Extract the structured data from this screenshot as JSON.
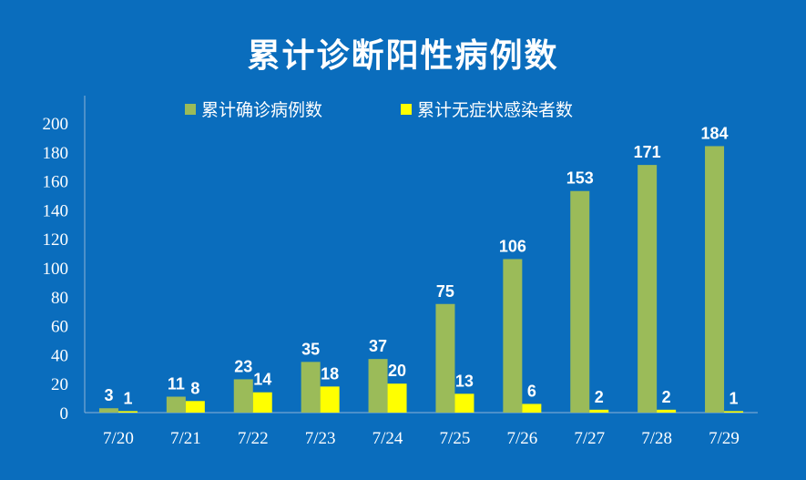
{
  "chart_data": {
    "type": "bar",
    "title": "累计诊断阳性病例数",
    "categories": [
      "7/20",
      "7/21",
      "7/22",
      "7/23",
      "7/24",
      "7/25",
      "7/26",
      "7/27",
      "7/28",
      "7/29"
    ],
    "series": [
      {
        "name": "累计确诊病例数",
        "color": "#9bbb59",
        "values": [
          3,
          11,
          23,
          35,
          37,
          75,
          106,
          153,
          171,
          184
        ]
      },
      {
        "name": "累计无症状感染者数",
        "color": "#ffff00",
        "values": [
          1,
          8,
          14,
          18,
          20,
          13,
          6,
          2,
          2,
          1
        ]
      }
    ],
    "ylim": [
      0,
      200
    ],
    "yticks": [
      0,
      20,
      40,
      60,
      80,
      100,
      120,
      140,
      160,
      180,
      200
    ],
    "grid": false,
    "legend": "top",
    "data_labels": true
  }
}
